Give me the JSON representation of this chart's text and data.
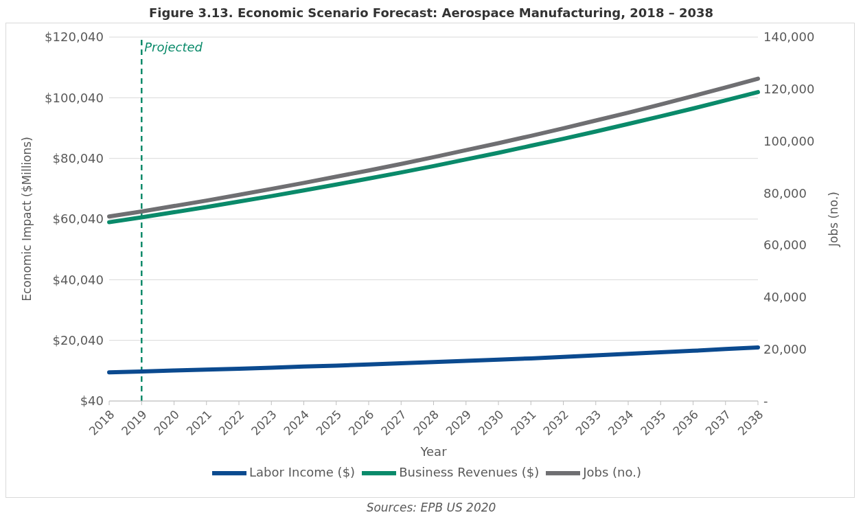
{
  "chart_data": {
    "type": "line",
    "title": "Figure 3.13. Economic Scenario Forecast: Aerospace Manufacturing, 2018 – 2038",
    "xlabel": "Year",
    "ylabel": "Economic Impact ($Millions)",
    "y2label": "Jobs (no.)",
    "categories": [
      "2018",
      "2019",
      "2020",
      "2021",
      "2022",
      "2023",
      "2024",
      "2025",
      "2026",
      "2027",
      "2028",
      "2029",
      "2030",
      "2031",
      "2032",
      "2033",
      "2034",
      "2035",
      "2036",
      "2037",
      "2038"
    ],
    "series": [
      {
        "name": "Labor Income ($)",
        "color": "#0b4a8f",
        "values": [
          9500,
          9800,
          10100,
          10400,
          10700,
          11000,
          11400,
          11700,
          12100,
          12500,
          12900,
          13300,
          13700,
          14100,
          14600,
          15100,
          15600,
          16100,
          16600,
          17200,
          17700
        ]
      },
      {
        "name": "Business Revenues ($)",
        "color": "#0a8a6a",
        "values": [
          59000,
          60600,
          62300,
          64000,
          65800,
          67600,
          69500,
          71400,
          73400,
          75400,
          77500,
          79700,
          81900,
          84200,
          86500,
          88900,
          91400,
          93900,
          96500,
          99200,
          101900
        ]
      },
      {
        "name": "Jobs (no.)",
        "color": "#6f6f72",
        "axis": "y2",
        "values": [
          71000,
          72900,
          75000,
          77100,
          79300,
          81600,
          83900,
          86300,
          88700,
          91200,
          93800,
          96500,
          99200,
          102000,
          104900,
          107900,
          110900,
          114100,
          117300,
          120600,
          124000
        ]
      }
    ],
    "ylim": [
      40,
      120040
    ],
    "yticks": [
      {
        "value": 40,
        "label": "$40"
      },
      {
        "value": 20040,
        "label": "$20,040"
      },
      {
        "value": 40040,
        "label": "$40,040"
      },
      {
        "value": 60040,
        "label": "$60,040"
      },
      {
        "value": 80040,
        "label": "$80,040"
      },
      {
        "value": 100040,
        "label": "$100,040"
      },
      {
        "value": 120040,
        "label": "$120,040"
      }
    ],
    "y2lim": [
      0,
      140000
    ],
    "y2ticks": [
      {
        "value": 0,
        "label": "-"
      },
      {
        "value": 20000,
        "label": "20,000"
      },
      {
        "value": 40000,
        "label": "40,000"
      },
      {
        "value": 60000,
        "label": "60,000"
      },
      {
        "value": 80000,
        "label": "80,000"
      },
      {
        "value": 100000,
        "label": "100,000"
      },
      {
        "value": 120000,
        "label": "120,000"
      },
      {
        "value": 140000,
        "label": "140,000"
      }
    ],
    "ref_lines": [
      {
        "axis": "x",
        "value": "2019",
        "label": "Projected",
        "color": "#0a8a6a",
        "line_style": "dashed"
      }
    ],
    "annotations": [
      "Sources: EPB US 2020"
    ],
    "grid": "y",
    "legend": "bottom",
    "marker": "none",
    "line_style": "solid"
  }
}
